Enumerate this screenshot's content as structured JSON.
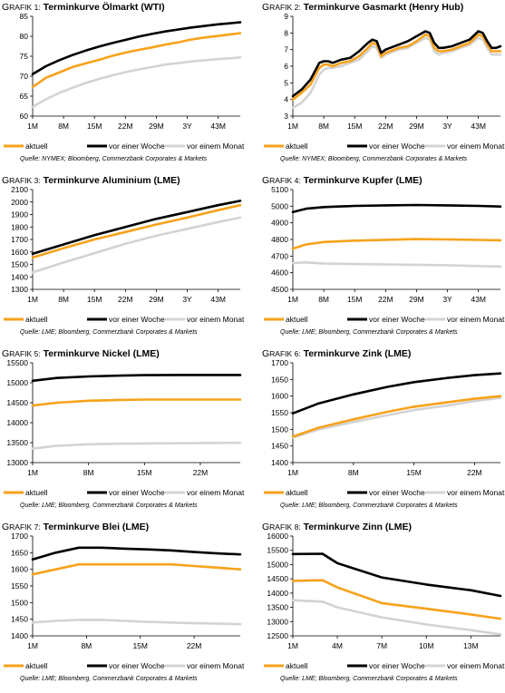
{
  "colors": {
    "aktuell": "#f7a21b",
    "woche": "#000000",
    "monat": "#d3d3d3",
    "axis": "#000000",
    "grid": "#999999"
  },
  "chart_data": [
    {
      "type": "line",
      "prefix": "G",
      "prefix_rest": "RAFIK 1:",
      "title": "Terminkurve Ölmarkt (WTI)",
      "categories": [
        "1M",
        "8M",
        "15M",
        "22M",
        "29M",
        "3Y",
        "43M"
      ],
      "x": [
        1,
        4,
        7,
        10,
        13,
        16,
        19,
        22,
        25,
        28,
        31,
        34,
        37,
        40,
        43,
        46,
        48
      ],
      "xlim": [
        1,
        48
      ],
      "xticks": [
        1,
        8,
        15,
        22,
        29,
        36,
        43
      ],
      "ylim": [
        60,
        85
      ],
      "yticks": [
        "60",
        "65",
        "70",
        "75",
        "80",
        "85"
      ],
      "ytick_values": [
        60,
        65,
        70,
        75,
        80,
        85
      ],
      "series": [
        {
          "name": "aktuell",
          "key": "aktuell",
          "values": [
            67.3,
            69.6,
            70.9,
            72.3,
            73.2,
            74.1,
            75.1,
            75.9,
            76.6,
            77.2,
            77.9,
            78.5,
            79.2,
            79.7,
            80.1,
            80.5,
            80.8
          ]
        },
        {
          "name": "vor einer Woche",
          "key": "woche",
          "values": [
            70.5,
            72.5,
            74.0,
            75.3,
            76.4,
            77.4,
            78.3,
            79.1,
            79.9,
            80.6,
            81.2,
            81.7,
            82.2,
            82.6,
            83.0,
            83.3,
            83.5
          ]
        },
        {
          "name": "vor einem Monat",
          "key": "monat",
          "values": [
            62.3,
            64.2,
            65.8,
            67.1,
            68.3,
            69.3,
            70.2,
            71.0,
            71.7,
            72.3,
            72.9,
            73.3,
            73.7,
            74.0,
            74.3,
            74.5,
            74.7
          ]
        }
      ],
      "source": "Quelle: NYMEX; Bloomberg, Commerzbank Corporates & Markets"
    },
    {
      "type": "line",
      "prefix": "G",
      "prefix_rest": "RAFIK 2:",
      "title": "Terminkurve Gasmarkt (Henry Hub)",
      "categories": [
        "1M",
        "8M",
        "15M",
        "22M",
        "29M",
        "3Y",
        "43M"
      ],
      "x": [
        1,
        3,
        5,
        7,
        8,
        9,
        10,
        12,
        14,
        16,
        18,
        19,
        20,
        21,
        22,
        23,
        25,
        27,
        29,
        31,
        32,
        33,
        34,
        35,
        37,
        39,
        41,
        43,
        44,
        45,
        46,
        47,
        48
      ],
      "xlim": [
        1,
        48
      ],
      "xticks": [
        1,
        8,
        15,
        22,
        29,
        36,
        43
      ],
      "ylim": [
        3,
        9
      ],
      "yticks": [
        "3",
        "4",
        "5",
        "6",
        "7",
        "8",
        "9"
      ],
      "ytick_values": [
        3,
        4,
        5,
        6,
        7,
        8,
        9
      ],
      "series": [
        {
          "name": "aktuell",
          "key": "aktuell",
          "values": [
            4.0,
            4.4,
            4.9,
            5.9,
            6.1,
            6.1,
            6.0,
            6.2,
            6.3,
            6.6,
            7.1,
            7.4,
            7.3,
            6.6,
            6.8,
            6.9,
            7.1,
            7.2,
            7.5,
            7.9,
            7.8,
            7.1,
            6.9,
            6.9,
            7.0,
            7.2,
            7.4,
            7.9,
            7.8,
            7.3,
            6.9,
            6.9,
            6.9
          ]
        },
        {
          "name": "vor einer Woche",
          "key": "woche",
          "values": [
            4.2,
            4.6,
            5.2,
            6.2,
            6.3,
            6.3,
            6.2,
            6.4,
            6.5,
            6.9,
            7.4,
            7.6,
            7.5,
            6.8,
            7.0,
            7.1,
            7.3,
            7.5,
            7.8,
            8.1,
            8.0,
            7.4,
            7.1,
            7.1,
            7.2,
            7.4,
            7.6,
            8.1,
            8.0,
            7.5,
            7.1,
            7.1,
            7.2
          ]
        },
        {
          "name": "vor einem Monat",
          "key": "monat",
          "values": [
            3.5,
            3.8,
            4.4,
            5.5,
            5.8,
            5.9,
            5.9,
            6.0,
            6.2,
            6.4,
            6.9,
            7.2,
            7.1,
            6.5,
            6.7,
            6.8,
            7.0,
            7.1,
            7.4,
            7.7,
            7.6,
            6.9,
            6.7,
            6.8,
            6.9,
            7.1,
            7.3,
            7.7,
            7.6,
            7.1,
            6.7,
            6.7,
            6.7
          ]
        }
      ],
      "source": "Quelle: NYMEX; Bloomberg, Commerzbank Corporates & Markets"
    },
    {
      "type": "line",
      "prefix": "G",
      "prefix_rest": "RAFIK 3:",
      "title": "Terminkurve Aluminium (LME)",
      "categories": [
        "1M",
        "8M",
        "15M",
        "22M",
        "29M",
        "3Y",
        "43M"
      ],
      "x": [
        1,
        8,
        15,
        22,
        29,
        36,
        43,
        48
      ],
      "xlim": [
        1,
        48
      ],
      "xticks": [
        1,
        8,
        15,
        22,
        29,
        36,
        43
      ],
      "ylim": [
        1300,
        2100
      ],
      "yticks": [
        "1300",
        "1400",
        "1500",
        "1600",
        "1700",
        "1800",
        "1900",
        "2000",
        "2100"
      ],
      "ytick_values": [
        1300,
        1400,
        1500,
        1600,
        1700,
        1800,
        1900,
        2000,
        2100
      ],
      "series": [
        {
          "name": "aktuell",
          "key": "aktuell",
          "values": [
            1555,
            1630,
            1700,
            1760,
            1820,
            1875,
            1935,
            1975
          ]
        },
        {
          "name": "vor einer Woche",
          "key": "woche",
          "values": [
            1585,
            1660,
            1735,
            1800,
            1865,
            1920,
            1975,
            2010
          ]
        },
        {
          "name": "vor einem Monat",
          "key": "monat",
          "values": [
            1435,
            1515,
            1590,
            1665,
            1730,
            1785,
            1840,
            1875
          ]
        }
      ],
      "source": "Quelle: LME; Bloomberg, Commerzbank Corporates & Markets"
    },
    {
      "type": "line",
      "prefix": "G",
      "prefix_rest": "RAFIK 4:",
      "title": "Terminkurve Kupfer (LME)",
      "categories": [
        "1M",
        "8M",
        "15M",
        "22M",
        "29M",
        "3Y",
        "43M"
      ],
      "x": [
        1,
        4,
        8,
        15,
        22,
        29,
        36,
        43,
        48
      ],
      "xlim": [
        1,
        48
      ],
      "xticks": [
        1,
        8,
        15,
        22,
        29,
        36,
        43
      ],
      "ylim": [
        4500,
        5100
      ],
      "yticks": [
        "4500",
        "4600",
        "4700",
        "4800",
        "4900",
        "5000",
        "5100"
      ],
      "ytick_values": [
        4500,
        4600,
        4700,
        4800,
        4900,
        5000,
        5100
      ],
      "series": [
        {
          "name": "aktuell",
          "key": "aktuell",
          "values": [
            4745,
            4770,
            4785,
            4793,
            4798,
            4802,
            4800,
            4797,
            4795
          ]
        },
        {
          "name": "vor einer Woche",
          "key": "woche",
          "values": [
            4965,
            4985,
            4995,
            5002,
            5005,
            5007,
            5005,
            5002,
            4998
          ]
        },
        {
          "name": "vor einem Monat",
          "key": "monat",
          "values": [
            4658,
            4662,
            4655,
            4652,
            4650,
            4648,
            4645,
            4640,
            4637
          ]
        }
      ],
      "source": "Quelle: LME; Bloomberg, Commerzbank Corporates & Markets"
    },
    {
      "type": "line",
      "prefix": "G",
      "prefix_rest": "RAFIK 5:",
      "title": "Terminkurve Nickel (LME)",
      "categories": [
        "1M",
        "8M",
        "15M",
        "22M"
      ],
      "x": [
        1,
        4,
        8,
        12,
        15,
        19,
        22,
        27
      ],
      "xlim": [
        1,
        27
      ],
      "xticks": [
        1,
        8,
        15,
        22
      ],
      "ylim": [
        13000,
        15500
      ],
      "yticks": [
        "13000",
        "13500",
        "14000",
        "14500",
        "15000",
        "15500"
      ],
      "ytick_values": [
        13000,
        13500,
        14000,
        14500,
        15000,
        15500
      ],
      "series": [
        {
          "name": "aktuell",
          "key": "aktuell",
          "values": [
            14430,
            14500,
            14550,
            14570,
            14580,
            14580,
            14580,
            14580
          ]
        },
        {
          "name": "vor einer Woche",
          "key": "woche",
          "values": [
            15050,
            15120,
            15160,
            15180,
            15190,
            15195,
            15195,
            15195
          ]
        },
        {
          "name": "vor einem Monat",
          "key": "monat",
          "values": [
            13350,
            13420,
            13460,
            13475,
            13480,
            13485,
            13490,
            13495
          ]
        }
      ],
      "source": "Quelle: LME; Bloomberg, Commerzbank Corporates & Markets"
    },
    {
      "type": "line",
      "prefix": "G",
      "prefix_rest": "RAFIK 6:",
      "title": "Terminkurve Zink (LME)",
      "categories": [
        "1M",
        "8M",
        "15M",
        "22M"
      ],
      "x": [
        1,
        4,
        8,
        12,
        15,
        19,
        22,
        25
      ],
      "xlim": [
        1,
        25
      ],
      "xticks": [
        1,
        8,
        15,
        22
      ],
      "ylim": [
        1400,
        1700
      ],
      "yticks": [
        "1400",
        "1450",
        "1500",
        "1550",
        "1600",
        "1650",
        "1700"
      ],
      "ytick_values": [
        1400,
        1450,
        1500,
        1550,
        1600,
        1650,
        1700
      ],
      "series": [
        {
          "name": "aktuell",
          "key": "aktuell",
          "values": [
            1478,
            1505,
            1530,
            1553,
            1568,
            1582,
            1592,
            1600
          ]
        },
        {
          "name": "vor einer Woche",
          "key": "woche",
          "values": [
            1548,
            1578,
            1605,
            1628,
            1642,
            1655,
            1663,
            1668
          ]
        },
        {
          "name": "vor einem Monat",
          "key": "monat",
          "values": [
            1475,
            1500,
            1522,
            1543,
            1558,
            1572,
            1585,
            1595
          ]
        }
      ],
      "source": "Quelle: LME; Bloomberg, Commerzbank Corporates & Markets"
    },
    {
      "type": "line",
      "prefix": "G",
      "prefix_rest": "RAFIK 7:",
      "title": "Terminkurve Blei (LME)",
      "categories": [
        "1M",
        "8M",
        "15M",
        "22M"
      ],
      "x": [
        1,
        4,
        7,
        10,
        13,
        16,
        19,
        22,
        25,
        28
      ],
      "xlim": [
        1,
        28
      ],
      "xticks": [
        1,
        8,
        15,
        22
      ],
      "ylim": [
        1400,
        1700
      ],
      "yticks": [
        "1400",
        "1450",
        "1500",
        "1550",
        "1600",
        "1650",
        "1700"
      ],
      "ytick_values": [
        1400,
        1450,
        1500,
        1550,
        1600,
        1650,
        1700
      ],
      "series": [
        {
          "name": "aktuell",
          "key": "aktuell",
          "values": [
            1585,
            1600,
            1615,
            1615,
            1615,
            1615,
            1615,
            1610,
            1605,
            1600
          ]
        },
        {
          "name": "vor einer Woche",
          "key": "woche",
          "values": [
            1630,
            1650,
            1665,
            1665,
            1662,
            1660,
            1657,
            1652,
            1648,
            1645
          ]
        },
        {
          "name": "vor einem Monat",
          "key": "monat",
          "values": [
            1440,
            1445,
            1448,
            1448,
            1445,
            1442,
            1440,
            1438,
            1437,
            1435
          ]
        }
      ],
      "source": "Quelle: LME; Bloomberg, Commerzbank Corporates & Markets"
    },
    {
      "type": "line",
      "prefix": "G",
      "prefix_rest": "RAFIK 8:",
      "title": "Terminkurve Zinn (LME)",
      "categories": [
        "1M",
        "4M",
        "7M",
        "10M",
        "13M"
      ],
      "x": [
        1,
        3,
        4,
        7,
        10,
        13,
        15
      ],
      "xlim": [
        1,
        15
      ],
      "xticks": [
        1,
        4,
        7,
        10,
        13
      ],
      "ylim": [
        12500,
        16000
      ],
      "yticks": [
        "12500",
        "13000",
        "13500",
        "14000",
        "14500",
        "15000",
        "15500",
        "16000"
      ],
      "ytick_values": [
        12500,
        13000,
        13500,
        14000,
        14500,
        15000,
        15500,
        16000
      ],
      "series": [
        {
          "name": "aktuell",
          "key": "aktuell",
          "values": [
            14430,
            14450,
            14200,
            13650,
            13450,
            13250,
            13100
          ]
        },
        {
          "name": "vor einer Woche",
          "key": "woche",
          "values": [
            15370,
            15380,
            15050,
            14550,
            14300,
            14100,
            13900
          ]
        },
        {
          "name": "vor einem Monat",
          "key": "monat",
          "values": [
            13750,
            13700,
            13500,
            13150,
            12900,
            12700,
            12550
          ]
        }
      ],
      "source": "Quelle: LME; Bloomberg, Commerzbank Corporates & Markets"
    }
  ]
}
